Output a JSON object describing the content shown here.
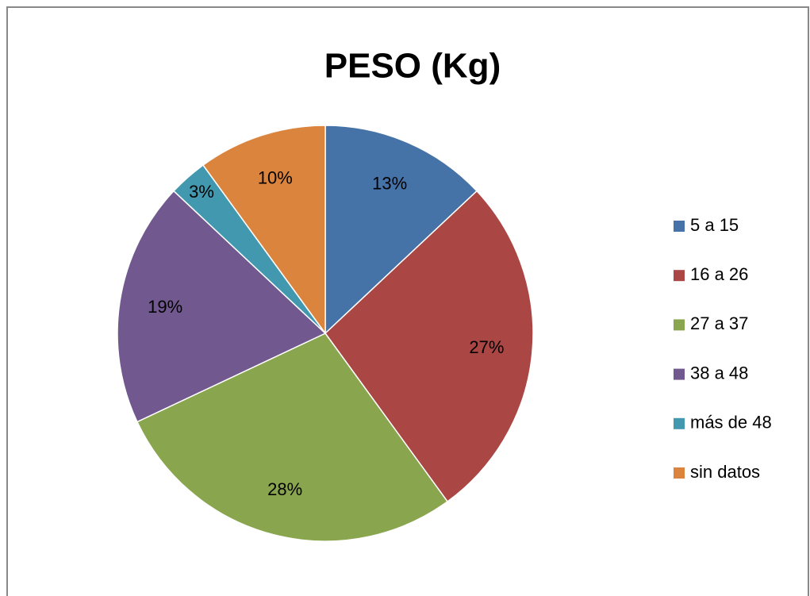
{
  "chart_data": {
    "type": "pie",
    "title": "PESO (Kg)",
    "categories": [
      "5 a 15",
      "16 a 26",
      "27 a 37",
      "38 a 48",
      "más de 48",
      "sin datos"
    ],
    "values": [
      13,
      27,
      28,
      19,
      3,
      10
    ],
    "value_labels": [
      "13%",
      "27%",
      "28%",
      "19%",
      "3%",
      "10%"
    ],
    "colors": [
      "#4572a7",
      "#aa4643",
      "#89a54e",
      "#71588f",
      "#4198af",
      "#db843d"
    ],
    "legend": "right"
  }
}
